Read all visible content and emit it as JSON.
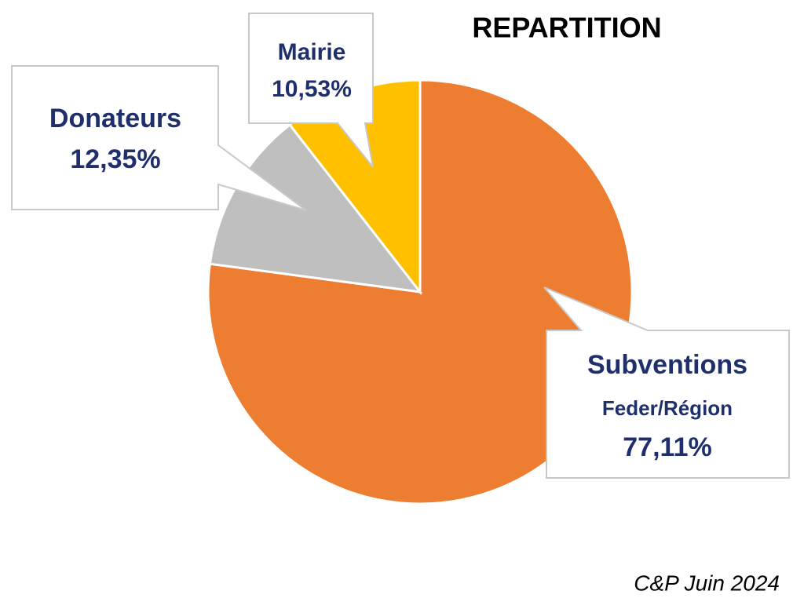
{
  "chart_data": {
    "type": "pie",
    "title": "REPARTITION",
    "footnote": "C&P Juin 2024",
    "categories": [
      [
        "Subventions",
        "Feder/Région"
      ],
      [
        "Donateurs"
      ],
      [
        "Mairie"
      ]
    ],
    "values": [
      77.11,
      12.35,
      10.53
    ],
    "value_labels": [
      "77,11%",
      "12,35%",
      "10,53%"
    ],
    "colors": [
      "#ED7D31",
      "#BFBFBF",
      "#FFC000"
    ]
  }
}
